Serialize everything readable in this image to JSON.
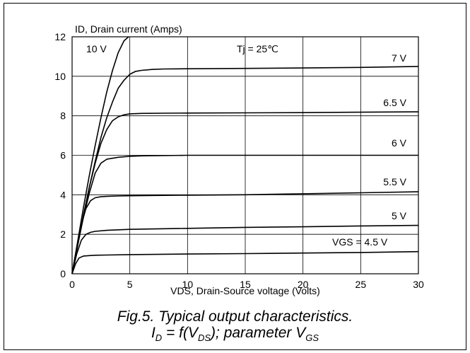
{
  "chart_data": {
    "type": "line",
    "ylabel": "ID, Drain current (Amps)",
    "xlabel": "VDS, Drain-Source voltage (Volts)",
    "annotation": "Tj = 25℃",
    "xlim": [
      0,
      30
    ],
    "ylim": [
      0,
      12
    ],
    "xticks": [
      0,
      5,
      10,
      15,
      20,
      25,
      30
    ],
    "yticks": [
      0,
      2,
      4,
      6,
      8,
      10,
      12
    ],
    "grid": true,
    "series": [
      {
        "name": "10 V",
        "x": [
          0,
          0.5,
          1,
          1.5,
          2,
          2.5,
          3,
          3.5,
          4,
          4.5,
          4.9
        ],
        "y": [
          0,
          1.7,
          3.4,
          5.0,
          6.5,
          7.9,
          9.2,
          10.3,
          11.2,
          11.8,
          12.0
        ]
      },
      {
        "name": "7 V",
        "x": [
          0,
          0.5,
          1,
          1.5,
          2,
          2.5,
          3,
          3.5,
          4,
          4.5,
          5,
          5.5,
          6,
          7,
          8,
          10,
          15,
          20,
          25,
          30
        ],
        "y": [
          0,
          1.5,
          3.0,
          4.4,
          5.7,
          6.9,
          7.9,
          8.7,
          9.4,
          9.8,
          10.1,
          10.25,
          10.3,
          10.35,
          10.37,
          10.38,
          10.4,
          10.42,
          10.45,
          10.5
        ]
      },
      {
        "name": "6.5 V",
        "x": [
          0,
          0.5,
          1,
          1.5,
          2,
          2.5,
          3,
          3.5,
          4,
          4.5,
          5,
          6,
          8,
          10,
          15,
          20,
          25,
          30
        ],
        "y": [
          0,
          1.5,
          3.0,
          4.4,
          5.6,
          6.6,
          7.3,
          7.75,
          7.95,
          8.05,
          8.1,
          8.12,
          8.13,
          8.14,
          8.15,
          8.16,
          8.18,
          8.2
        ]
      },
      {
        "name": "6 V",
        "x": [
          0,
          0.5,
          1,
          1.5,
          2,
          2.5,
          3,
          4,
          5,
          6,
          10,
          15,
          20,
          25,
          30
        ],
        "y": [
          0,
          1.5,
          2.9,
          4.1,
          5.1,
          5.6,
          5.8,
          5.9,
          5.95,
          5.97,
          6.0,
          6.0,
          6.0,
          6.0,
          6.0
        ]
      },
      {
        "name": "5.5 V",
        "x": [
          0,
          0.4,
          0.8,
          1.2,
          1.6,
          2,
          2.5,
          3,
          4,
          5,
          10,
          15,
          20,
          25,
          30
        ],
        "y": [
          0,
          1.3,
          2.5,
          3.3,
          3.7,
          3.85,
          3.9,
          3.92,
          3.94,
          3.95,
          3.98,
          4.0,
          4.05,
          4.1,
          4.15
        ]
      },
      {
        "name": "5 V",
        "x": [
          0,
          0.4,
          0.8,
          1.2,
          1.6,
          2,
          3,
          5,
          10,
          15,
          20,
          25,
          30
        ],
        "y": [
          0,
          1.0,
          1.7,
          2.0,
          2.1,
          2.15,
          2.2,
          2.25,
          2.3,
          2.35,
          2.38,
          2.42,
          2.45
        ]
      },
      {
        "name": "VGS = 4.5 V",
        "x": [
          0,
          0.3,
          0.6,
          1,
          1.5,
          2,
          3,
          5,
          10,
          15,
          20,
          25,
          30
        ],
        "y": [
          0,
          0.5,
          0.8,
          0.9,
          0.92,
          0.94,
          0.95,
          0.97,
          1.0,
          1.02,
          1.05,
          1.08,
          1.12
        ]
      }
    ]
  },
  "caption": {
    "line1": "Fig.5.  Typical output characteristics.",
    "line2_i": "I",
    "line2_d": "D",
    "line2_mid": " = f(V",
    "line2_ds": "DS",
    "line2_param": "); parameter V",
    "line2_gs": "GS"
  }
}
